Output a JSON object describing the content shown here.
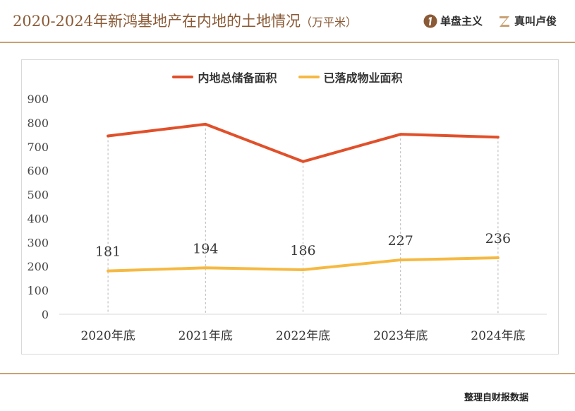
{
  "header": {
    "title": "2020-2024年新鸿基地产在内地的土地情况",
    "unit": "（万平米）",
    "brand1": {
      "label": "单盘主义",
      "icon": "number-one-icon"
    },
    "brand2": {
      "label": "真叫卢俊",
      "icon": "z-logo-icon"
    }
  },
  "colors": {
    "accent": "#c9a173",
    "title": "#8a5a36",
    "series_total": "#e0502a",
    "series_completed": "#f5b942"
  },
  "chart_data": {
    "type": "line",
    "categories": [
      "2020年底",
      "2021年底",
      "2022年底",
      "2023年底",
      "2024年底"
    ],
    "series": [
      {
        "name": "内地总储备面积",
        "values": [
          745,
          794,
          638,
          752,
          740
        ]
      },
      {
        "name": "已落成物业面积",
        "values": [
          181,
          194,
          186,
          227,
          236
        ],
        "data_labels": true
      }
    ],
    "ylim": [
      0,
      900
    ],
    "yticks": [
      0,
      100,
      200,
      300,
      400,
      500,
      600,
      700,
      800,
      900
    ],
    "grid": false,
    "legend_position": "top-center"
  },
  "footer": {
    "source": "整理自财报数据"
  }
}
